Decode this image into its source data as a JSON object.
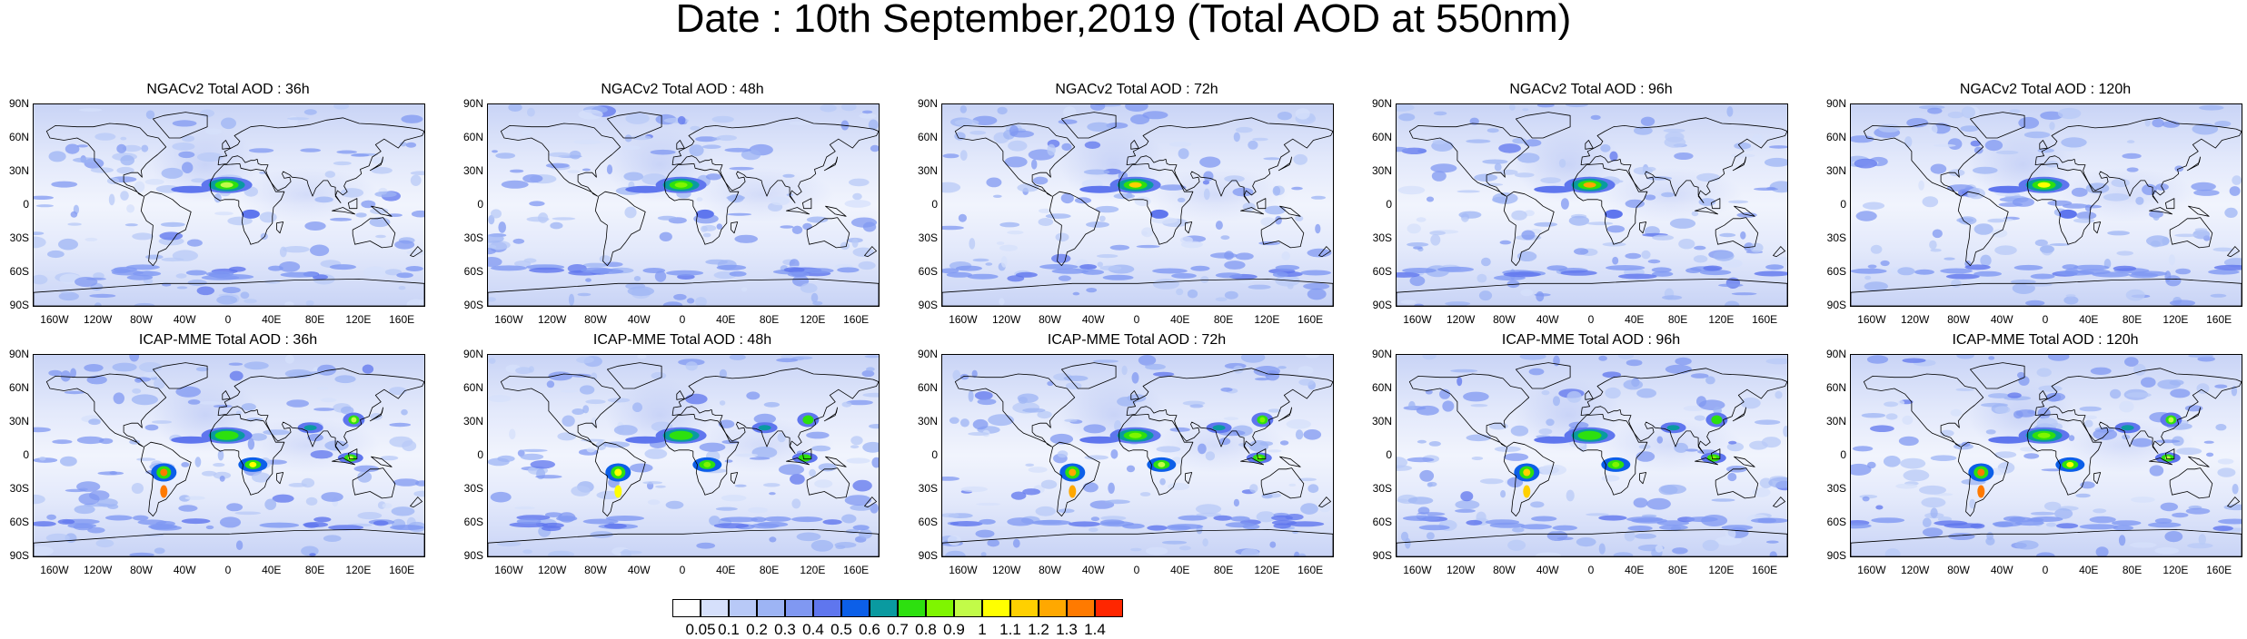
{
  "title": "Date : 10th September,2019 (Total AOD at 550nm)",
  "panels": [
    {
      "title": "NGACv2 Total AOD : 36h",
      "dust": 0.9,
      "smoke": 0.1
    },
    {
      "title": "NGACv2 Total AOD : 48h",
      "dust": 0.85,
      "smoke": 0.1
    },
    {
      "title": "NGACv2 Total AOD : 72h",
      "dust": 1.1,
      "smoke": 0.15
    },
    {
      "title": "NGACv2 Total AOD : 96h",
      "dust": 1.2,
      "smoke": 0.2
    },
    {
      "title": "NGACv2 Total AOD : 120h",
      "dust": 1.0,
      "smoke": 0.2
    },
    {
      "title": "ICAP-MME Total AOD : 36h",
      "dust": 0.7,
      "smoke": 1.3
    },
    {
      "title": "ICAP-MME Total AOD : 48h",
      "dust": 0.7,
      "smoke": 1.0
    },
    {
      "title": "ICAP-MME Total AOD : 72h",
      "dust": 0.8,
      "smoke": 1.2
    },
    {
      "title": "ICAP-MME Total AOD : 96h",
      "dust": 0.75,
      "smoke": 1.1
    },
    {
      "title": "ICAP-MME Total AOD : 120h",
      "dust": 0.8,
      "smoke": 1.3
    }
  ],
  "lat_labels": [
    "90N",
    "60N",
    "30N",
    "0",
    "30S",
    "60S",
    "90S"
  ],
  "lon_labels": [
    "160W",
    "120W",
    "80W",
    "40W",
    "0",
    "40E",
    "80E",
    "120E",
    "160E"
  ],
  "colorbar": {
    "labels": [
      "0.05",
      "0.1",
      "0.2",
      "0.3",
      "0.4",
      "0.5",
      "0.6",
      "0.7",
      "0.8",
      "0.9",
      "1",
      "1.1",
      "1.2",
      "1.3",
      "1.4"
    ],
    "colors": [
      "#ffffff",
      "#d6e0fb",
      "#b8c9f7",
      "#9db4f4",
      "#8098f2",
      "#5f76ee",
      "#0c5fe8",
      "#0a9aa0",
      "#2de00f",
      "#7ff500",
      "#c2fb48",
      "#ffff00",
      "#ffd000",
      "#ffa800",
      "#ff7a00",
      "#ff2600"
    ]
  }
}
